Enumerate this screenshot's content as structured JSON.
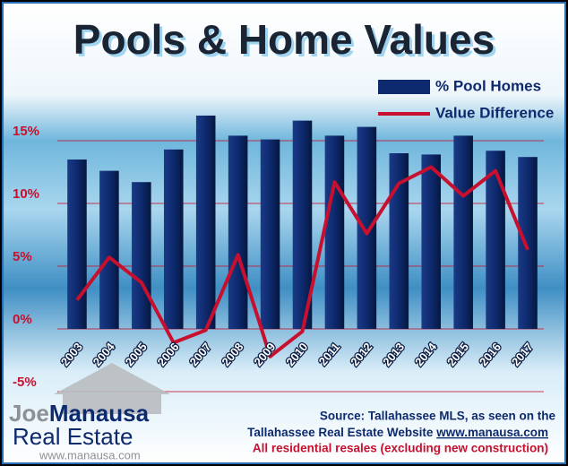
{
  "chart_data": {
    "type": "bar",
    "title": "Pools & Home Values",
    "categories": [
      "2003",
      "2004",
      "2005",
      "2006",
      "2007",
      "2008",
      "2009",
      "2010",
      "2011",
      "2012",
      "2013",
      "2014",
      "2015",
      "2016",
      "2017"
    ],
    "series": [
      {
        "name": "% Pool Homes",
        "type": "bar",
        "color": "#0e2a6e",
        "values": [
          13.5,
          12.6,
          11.7,
          14.3,
          17.0,
          15.4,
          15.1,
          16.6,
          15.4,
          16.1,
          14.0,
          13.9,
          15.4,
          14.2,
          13.7
        ]
      },
      {
        "name": "Value Difference",
        "type": "line",
        "color": "#c8102e",
        "values": [
          2.3,
          5.7,
          3.7,
          -1.1,
          -0.1,
          5.9,
          -2.2,
          -0.2,
          11.7,
          7.6,
          11.6,
          12.9,
          10.6,
          12.6,
          6.3
        ]
      }
    ],
    "ylim": [
      -5.5,
      18.5
    ],
    "yticks": [
      {
        "value": -5,
        "label": "-5%"
      },
      {
        "value": 0,
        "label": "0%"
      },
      {
        "value": 5,
        "label": "5%"
      },
      {
        "value": 10,
        "label": "10%"
      },
      {
        "value": 15,
        "label": "15%"
      }
    ],
    "grid": true,
    "legend": "top-right"
  },
  "footer": {
    "line1": "Source: Tallahassee MLS, as seen on the",
    "line2": "Tallahassee Real Estate Website",
    "link": "www.manausa.com",
    "line3": "All residential resales (excluding new construction)"
  },
  "logo": {
    "name1": "Joe",
    "name2": "Manausa",
    "name3": "Real Estate",
    "url": "www.manausa.com"
  }
}
